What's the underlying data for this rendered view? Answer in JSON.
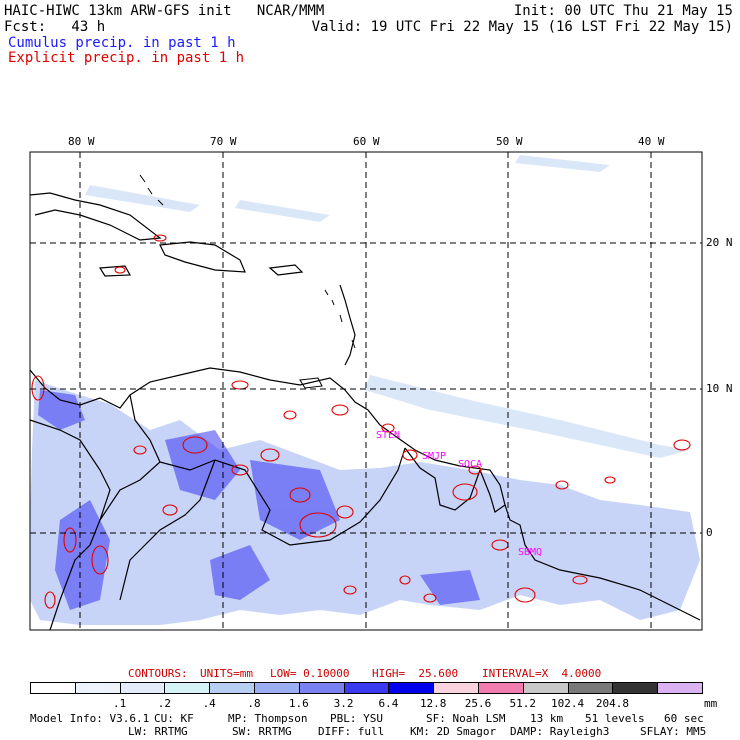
{
  "header": {
    "model_title": "HAIC-HIWC 13km ARW-GFS init   NCAR/MMM",
    "init": "Init: 00 UTC Thu 21 May 15",
    "fcst": "Fcst:   43 h",
    "valid": "Valid: 19 UTC Fri 22 May 15 (16 LST Fri 22 May 15)",
    "legend_cumulus": "Cumulus precip. in past 1 h",
    "legend_explicit": "Explicit precip. in past 1 h",
    "legend_cumulus_color": "#1a1aff",
    "legend_explicit_color": "#e00000"
  },
  "map": {
    "lon_labels": [
      "80 W",
      "70 W",
      "60 W",
      "50 W",
      "40 W"
    ],
    "lat_labels": [
      "20 N",
      "10 N",
      "0"
    ],
    "station_labels": [
      "STEN",
      "SMJP",
      "SOCA",
      "SBMQ"
    ],
    "station_color": "#ff00ff",
    "coast_color": "#000000",
    "grid_style": "dashed"
  },
  "contour_info": {
    "label": "CONTOURS:",
    "units": "UNITS=mm",
    "low": "LOW= 0.10000",
    "high": "HIGH=  25.600",
    "interval": "INTERVAL=X  4.0000",
    "color": "#cc0000"
  },
  "colorbar": {
    "colors": [
      "#ffffff",
      "#eef4fb",
      "#e2ecfb",
      "#d6f3f8",
      "#b6cff2",
      "#9aaff2",
      "#7a82f2",
      "#3a3af2",
      "#0000ee",
      "#f9d3de",
      "#f27bb0",
      "#c8c8c8",
      "#7a7a7a",
      "#333333",
      "#dab4f2"
    ],
    "values": [
      ".1",
      ".2",
      ".4",
      ".8",
      "1.6",
      "3.2",
      "6.4",
      "12.8",
      "25.6",
      "51.2",
      "102.4",
      "204.8"
    ],
    "unit": "mm"
  },
  "footer": {
    "line1": [
      "Model Info: V3.6.1",
      "CU: KF",
      "MP: Thompson",
      "PBL: YSU",
      "SF: Noah LSM",
      "13 km",
      "51 levels",
      "60 sec"
    ],
    "line2": [
      "LW: RRTMG",
      "SW: RRTMG",
      "DIFF: full",
      "KM: 2D Smagor",
      "DAMP: Rayleigh3",
      "SFLAY: MM5"
    ]
  }
}
